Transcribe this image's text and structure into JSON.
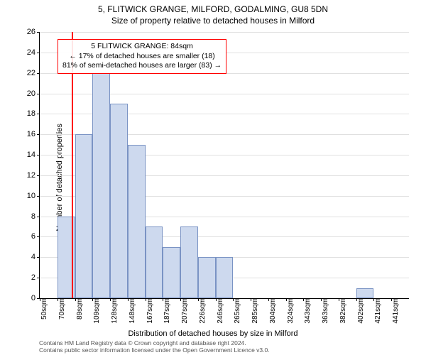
{
  "title": "5, FLITWICK GRANGE, MILFORD, GODALMING, GU8 5DN",
  "subtitle": "Size of property relative to detached houses in Milford",
  "ylabel": "Number of detached properties",
  "xlabel": "Distribution of detached houses by size in Milford",
  "footer_line1": "Contains HM Land Registry data © Crown copyright and database right 2024.",
  "footer_line2": "Contains public sector information licensed under the Open Government Licence v3.0.",
  "chart": {
    "type": "histogram",
    "ylim": [
      0,
      26
    ],
    "ytick_step": 2,
    "background_color": "#ffffff",
    "grid_color": "#e0e0e0",
    "bar_fill": "#cdd9ee",
    "bar_stroke": "#7a93c4",
    "bar_width_ratio": 1.0,
    "marker_color": "#ff0000",
    "annotation_border": "#ff0000",
    "x_categories": [
      "50sqm",
      "70sqm",
      "89sqm",
      "109sqm",
      "128sqm",
      "148sqm",
      "167sqm",
      "187sqm",
      "207sqm",
      "226sqm",
      "246sqm",
      "265sqm",
      "285sqm",
      "304sqm",
      "324sqm",
      "343sqm",
      "363sqm",
      "382sqm",
      "402sqm",
      "421sqm",
      "441sqm"
    ],
    "values": [
      0,
      8,
      16,
      22,
      19,
      15,
      7,
      5,
      7,
      4,
      4,
      0,
      0,
      0,
      0,
      0,
      0,
      0,
      1,
      0,
      0
    ],
    "marker_index": 1.8,
    "label_fontsize": 11,
    "tick_fontsize": 10
  },
  "annotation": {
    "line1": "5 FLITWICK GRANGE: 84sqm",
    "line2": "← 17% of detached houses are smaller (18)",
    "line3": "81% of semi-detached houses are larger (83) →"
  }
}
